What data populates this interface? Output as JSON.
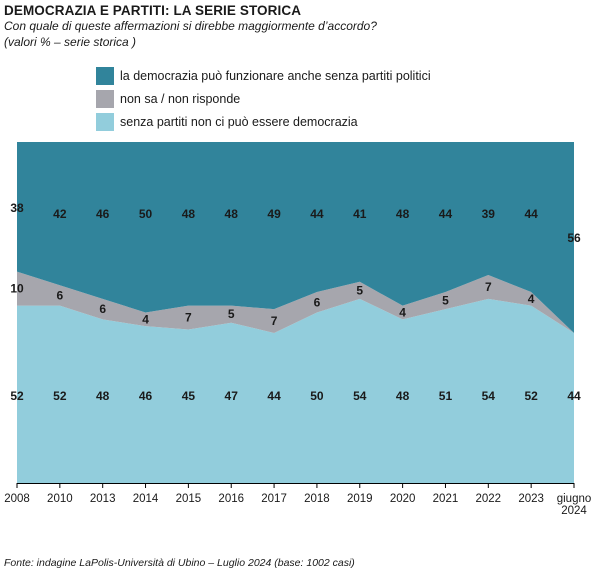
{
  "header": {
    "title": "DEMOCRAZIA E PARTITI: LA SERIE STORICA",
    "subtitle": "Con quale di queste affermazioni si direbbe maggiormente d’accordo?",
    "note": "(valori % – serie storica )"
  },
  "footer": {
    "source": "Fonte: indagine LaPolis-Università di Ubino – Luglio 2024 (base: 1002 casi)"
  },
  "chart_data": {
    "type": "area",
    "stacked": true,
    "x": [
      "2008",
      "2010",
      "2013",
      "2014",
      "2015",
      "2016",
      "2017",
      "2018",
      "2019",
      "2020",
      "2021",
      "2022",
      "2023",
      "giugno 2024"
    ],
    "x_tick_lines": [
      [
        "2008"
      ],
      [
        "2010"
      ],
      [
        "2013"
      ],
      [
        "2014"
      ],
      [
        "2015"
      ],
      [
        "2016"
      ],
      [
        "2017"
      ],
      [
        "2018"
      ],
      [
        "2019"
      ],
      [
        "2020"
      ],
      [
        "2021"
      ],
      [
        "2022"
      ],
      [
        "2023"
      ],
      [
        "giugno",
        "2024"
      ]
    ],
    "ylim": [
      0,
      100
    ],
    "legend_position": "top",
    "series": [
      {
        "name": "senza partiti non ci può essere democrazia",
        "color": "#92cddc",
        "values": [
          52,
          52,
          48,
          46,
          45,
          47,
          44,
          50,
          54,
          48,
          51,
          54,
          52,
          44
        ]
      },
      {
        "name": "non sa / non risponde",
        "color": "#a6a6ad",
        "values": [
          10,
          6,
          6,
          4,
          7,
          5,
          7,
          6,
          5,
          4,
          5,
          7,
          4,
          0
        ]
      },
      {
        "name": "la democrazia può funzionare anche senza partiti politici",
        "color": "#31849b",
        "values": [
          38,
          42,
          46,
          50,
          48,
          48,
          49,
          44,
          41,
          48,
          44,
          39,
          44,
          56
        ]
      }
    ],
    "data_labels": {
      "senza partiti non ci può essere democrazia": [
        "52",
        "52",
        "48",
        "46",
        "45",
        "47",
        "44",
        "50",
        "54",
        "48",
        "51",
        "54",
        "52",
        "44"
      ],
      "non sa / non risponde": [
        "10",
        "6",
        "6",
        "4",
        "7",
        "5",
        "7",
        "6",
        "5",
        "4",
        "5",
        "7",
        "4",
        ""
      ],
      "la democrazia può funzionare anche senza partiti politici": [
        "38",
        "42",
        "46",
        "50",
        "48",
        "48",
        "49",
        "44",
        "41",
        "48",
        "44",
        "39",
        "44",
        "56"
      ]
    }
  }
}
